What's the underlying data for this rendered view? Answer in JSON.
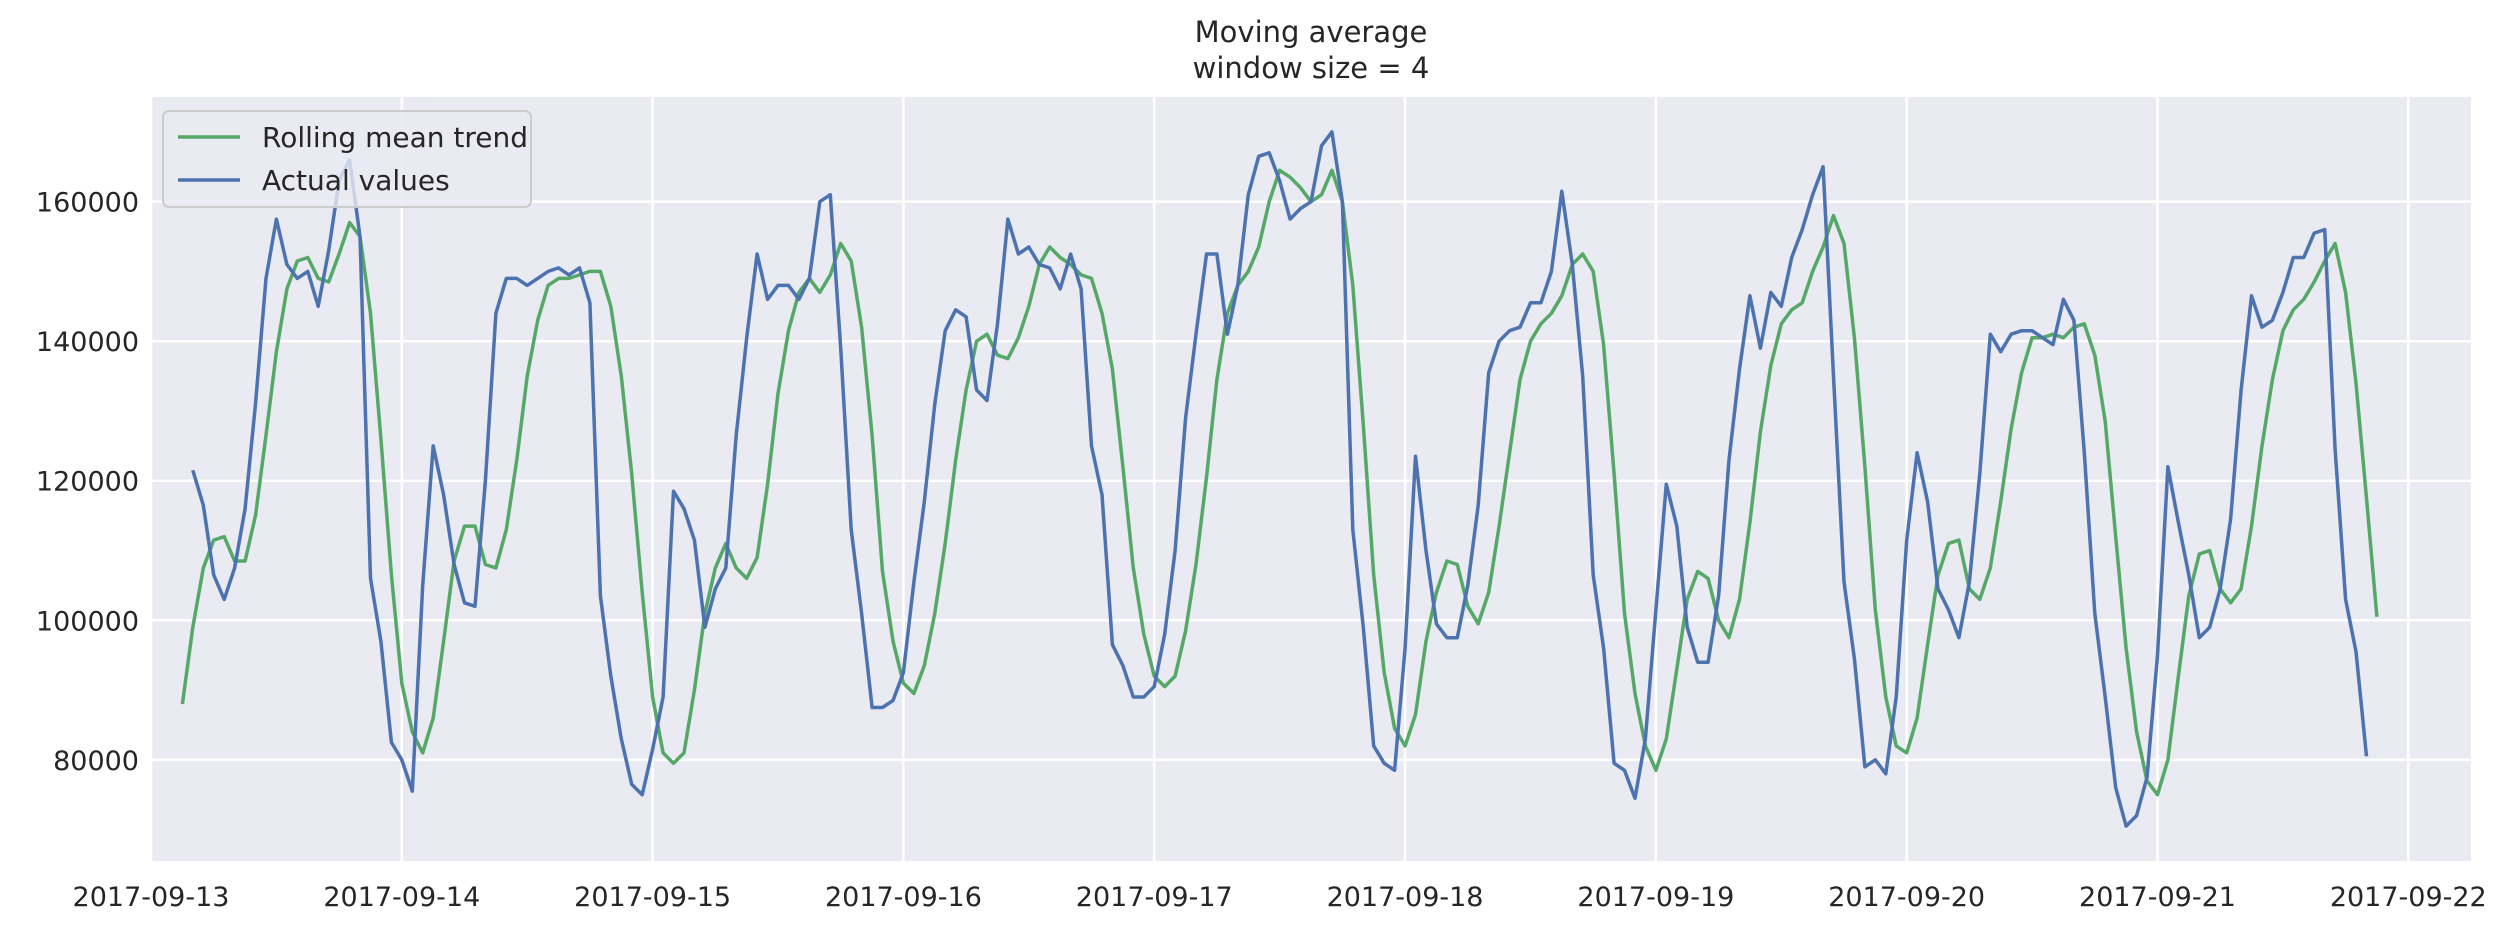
{
  "chart_data": {
    "type": "line",
    "title": "Moving average",
    "subtitle": "window size = 4",
    "xlabel": "",
    "ylabel": "",
    "x_start": "2017-09-13T03:00:00",
    "x_step_hours": 1,
    "xlim": [
      "2017-09-13T00:00:00",
      "2017-09-22T06:00:00"
    ],
    "ylim": [
      65500,
      175000
    ],
    "x_ticks": [
      "2017-09-13",
      "2017-09-14",
      "2017-09-15",
      "2017-09-16",
      "2017-09-17",
      "2017-09-18",
      "2017-09-19",
      "2017-09-20",
      "2017-09-21",
      "2017-09-22"
    ],
    "y_ticks": [
      80000,
      100000,
      120000,
      140000,
      160000
    ],
    "grid": true,
    "legend_position": "top-left",
    "series": [
      {
        "name": "Rolling mean trend",
        "color": "#55a868",
        "start_index": 0,
        "values": [
          88000,
          99000,
          107500,
          111500,
          112000,
          108500,
          108500,
          115000,
          126500,
          138500,
          147500,
          151500,
          152000,
          149000,
          148500,
          152500,
          157000,
          155000,
          144000,
          126000,
          106500,
          91000,
          84000,
          81000,
          86000,
          97000,
          108500,
          113500,
          113500,
          108000,
          107500,
          113000,
          123000,
          135000,
          143000,
          148000,
          149000,
          149000,
          149500,
          150000,
          150000,
          145000,
          135000,
          121000,
          104000,
          89000,
          81000,
          79500,
          81000,
          90000,
          101000,
          107500,
          111000,
          107500,
          106000,
          109000,
          119500,
          132500,
          141500,
          147000,
          149000,
          147000,
          149500,
          154000,
          151500,
          142000,
          126500,
          107000,
          97000,
          91000,
          89500,
          93500,
          101000,
          111000,
          123000,
          133000,
          140000,
          141000,
          138000,
          137500,
          140500,
          145000,
          151000,
          153500,
          152000,
          151000,
          149500,
          149000,
          144000,
          136000,
          122000,
          107500,
          98000,
          92000,
          90500,
          92000,
          98500,
          108000,
          120500,
          134500,
          144000,
          148000,
          150000,
          153500,
          160000,
          164500,
          163500,
          162000,
          160000,
          161000,
          164500,
          160000,
          148000,
          128000,
          106500,
          92500,
          84500,
          82000,
          86500,
          97000,
          104000,
          108500,
          108000,
          102000,
          99500,
          104000,
          113500,
          124000,
          134500,
          140000,
          142500,
          144000,
          146500,
          151000,
          152500,
          150000,
          139500,
          121000,
          101000,
          89500,
          82000,
          78500,
          83000,
          93000,
          103000,
          107000,
          106000,
          100000,
          97500,
          103000,
          114000,
          127000,
          136500,
          142500,
          144500,
          145500,
          150000,
          153500,
          158000,
          154000,
          140500,
          122000,
          101500,
          89000,
          82000,
          81000,
          86000,
          96500,
          106500,
          111000,
          111500,
          104500,
          103000,
          107500,
          117000,
          127500,
          135500,
          140500,
          140500,
          141000,
          140500,
          142000,
          142500,
          138000,
          128500,
          112000,
          96000,
          84000,
          77000,
          75000,
          80000,
          92000,
          103500,
          109500,
          110000,
          104500,
          102500,
          104500,
          113500,
          125000,
          134500,
          141500,
          144500,
          146000,
          148500,
          151500,
          154000,
          147000,
          134000,
          117500,
          100500
        ]
      },
      {
        "name": "Actual values",
        "color": "#4c72b0",
        "start_index": 1,
        "values": [
          121500,
          116500,
          106500,
          103000,
          107500,
          116000,
          131000,
          149000,
          157500,
          151000,
          149000,
          150000,
          145000,
          153000,
          163000,
          166000,
          155000,
          106000,
          97000,
          82500,
          80000,
          75500,
          105000,
          125000,
          118000,
          108000,
          102500,
          102000,
          120000,
          144000,
          149000,
          149000,
          148000,
          149000,
          150000,
          150500,
          149500,
          150500,
          145500,
          103500,
          92000,
          83000,
          76500,
          75000,
          81500,
          89000,
          118500,
          116000,
          111500,
          99000,
          104500,
          107500,
          126500,
          140500,
          152500,
          146000,
          148000,
          148000,
          146000,
          149000,
          160000,
          161000,
          139000,
          113000,
          101000,
          87500,
          87500,
          88500,
          92500,
          105500,
          117000,
          131000,
          141500,
          144500,
          143500,
          133000,
          131500,
          142500,
          157500,
          152500,
          153500,
          151000,
          150500,
          147500,
          152500,
          147500,
          125000,
          118000,
          96500,
          93500,
          89000,
          89000,
          90500,
          98000,
          110000,
          129000,
          141000,
          152500,
          152500,
          141000,
          148000,
          161000,
          166500,
          167000,
          163000,
          157500,
          159000,
          160000,
          168000,
          170000,
          160000,
          113000,
          99000,
          82000,
          79500,
          78500,
          96000,
          123500,
          110000,
          99500,
          97500,
          97500,
          105000,
          116500,
          135500,
          140000,
          141500,
          142000,
          145500,
          145500,
          150000,
          161500,
          151000,
          135000,
          106500,
          96000,
          79500,
          78500,
          74500,
          83000,
          101500,
          119500,
          113500,
          99000,
          94000,
          94000,
          103500,
          123000,
          136000,
          146500,
          139000,
          147000,
          145000,
          152000,
          156000,
          161000,
          165000,
          135000,
          105500,
          94500,
          79000,
          80000,
          78000,
          89000,
          111500,
          124000,
          117000,
          104500,
          101500,
          97500,
          105500,
          121000,
          141000,
          138500,
          141000,
          141500,
          141500,
          140500,
          139500,
          146000,
          143000,
          124000,
          101000,
          89000,
          76000,
          70500,
          72000,
          77500,
          95000,
          122000,
          114000,
          106500,
          97500,
          99000,
          104500,
          114500,
          133000,
          146500,
          142000,
          143000,
          147000,
          152000,
          152000,
          155500,
          156000,
          124500,
          103000,
          95500,
          80500
        ]
      }
    ]
  }
}
